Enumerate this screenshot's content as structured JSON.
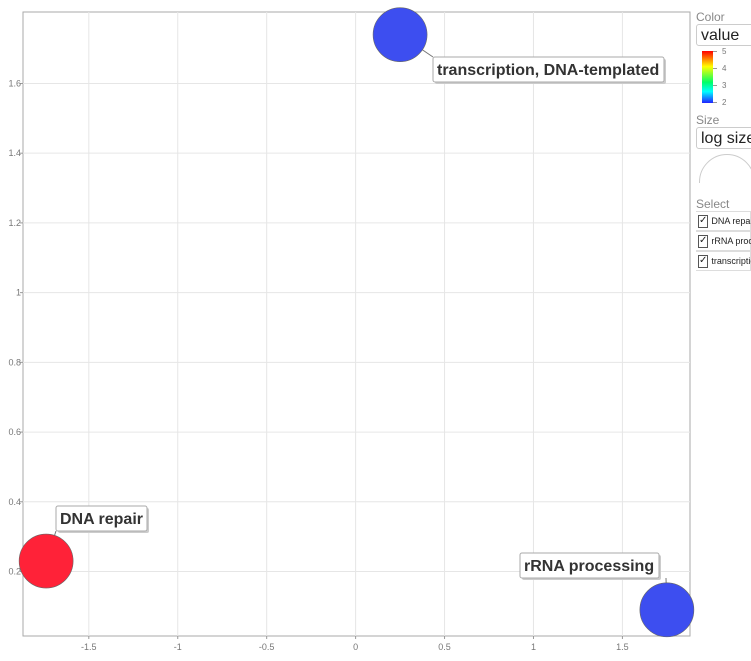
{
  "chart_data": {
    "type": "scatter",
    "x_ticks": [
      "-1.5",
      "-1",
      "-0.5",
      "0",
      "0.5",
      "1",
      "1.5"
    ],
    "y_ticks": [
      "0.2",
      "0.4",
      "0.6",
      "0.8",
      "1",
      "1.2",
      "1.4",
      "1.6"
    ],
    "xlim": [
      -1.87,
      1.88
    ],
    "ylim": [
      0.015,
      1.805
    ],
    "grid": true,
    "points": [
      {
        "label": "transcription, DNA-templated",
        "x": 0.25,
        "y": 1.74,
        "value": 2,
        "color": "#3d4ef0"
      },
      {
        "label": "DNA repair",
        "x": -1.74,
        "y": 0.23,
        "value": 5,
        "color": "#ff2238"
      },
      {
        "label": "rRNA processing",
        "x": 1.75,
        "y": 0.09,
        "value": 2,
        "color": "#3d4ef0"
      }
    ]
  },
  "legend": {
    "color_title": "Color",
    "color_select": "value",
    "color_scale_ticks": [
      "5",
      "4",
      "3",
      "2"
    ],
    "size_title": "Size",
    "size_select": "log size",
    "select_title": "Select",
    "select_items": [
      {
        "label": "DNA repair",
        "checked": true
      },
      {
        "label": "rRNA processing",
        "checked": true
      },
      {
        "label": "transcription, DNA-templated",
        "checked": true
      }
    ]
  }
}
